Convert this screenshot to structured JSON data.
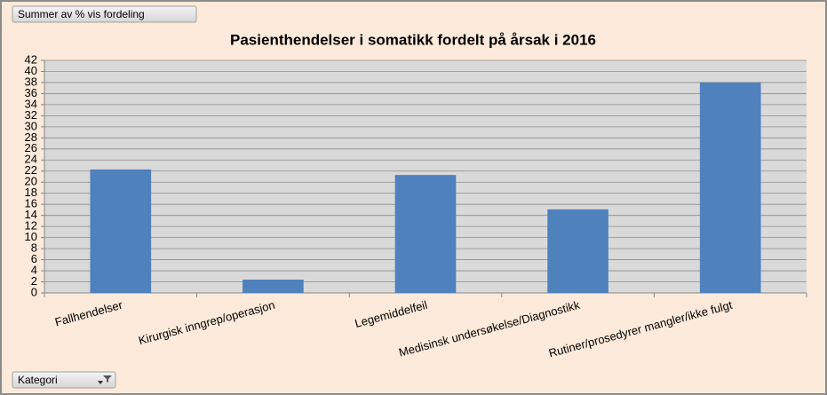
{
  "buttons": {
    "value_field": "Summer av % vis fordeling",
    "category_field": "Kategori"
  },
  "chart_data": {
    "type": "bar",
    "title": "Pasienthendelser i somatikk fordelt på årsak i 2016",
    "categories": [
      "Fallhendelser",
      "Kirurgisk inngrep/operasjon",
      "Legemiddelfeil",
      "Medisinsk undersøkelse/Diagnostikk",
      "Rutiner/prosedyrer mangler/ikke fulgt"
    ],
    "values": [
      22.3,
      2.4,
      21.3,
      15.1,
      38.0
    ],
    "color": "#4f81bd",
    "ylim": [
      0,
      42
    ],
    "yticks": [
      0,
      2,
      4,
      6,
      8,
      10,
      12,
      14,
      16,
      18,
      20,
      22,
      24,
      26,
      28,
      30,
      32,
      34,
      36,
      38,
      40,
      42
    ],
    "grid": true
  }
}
